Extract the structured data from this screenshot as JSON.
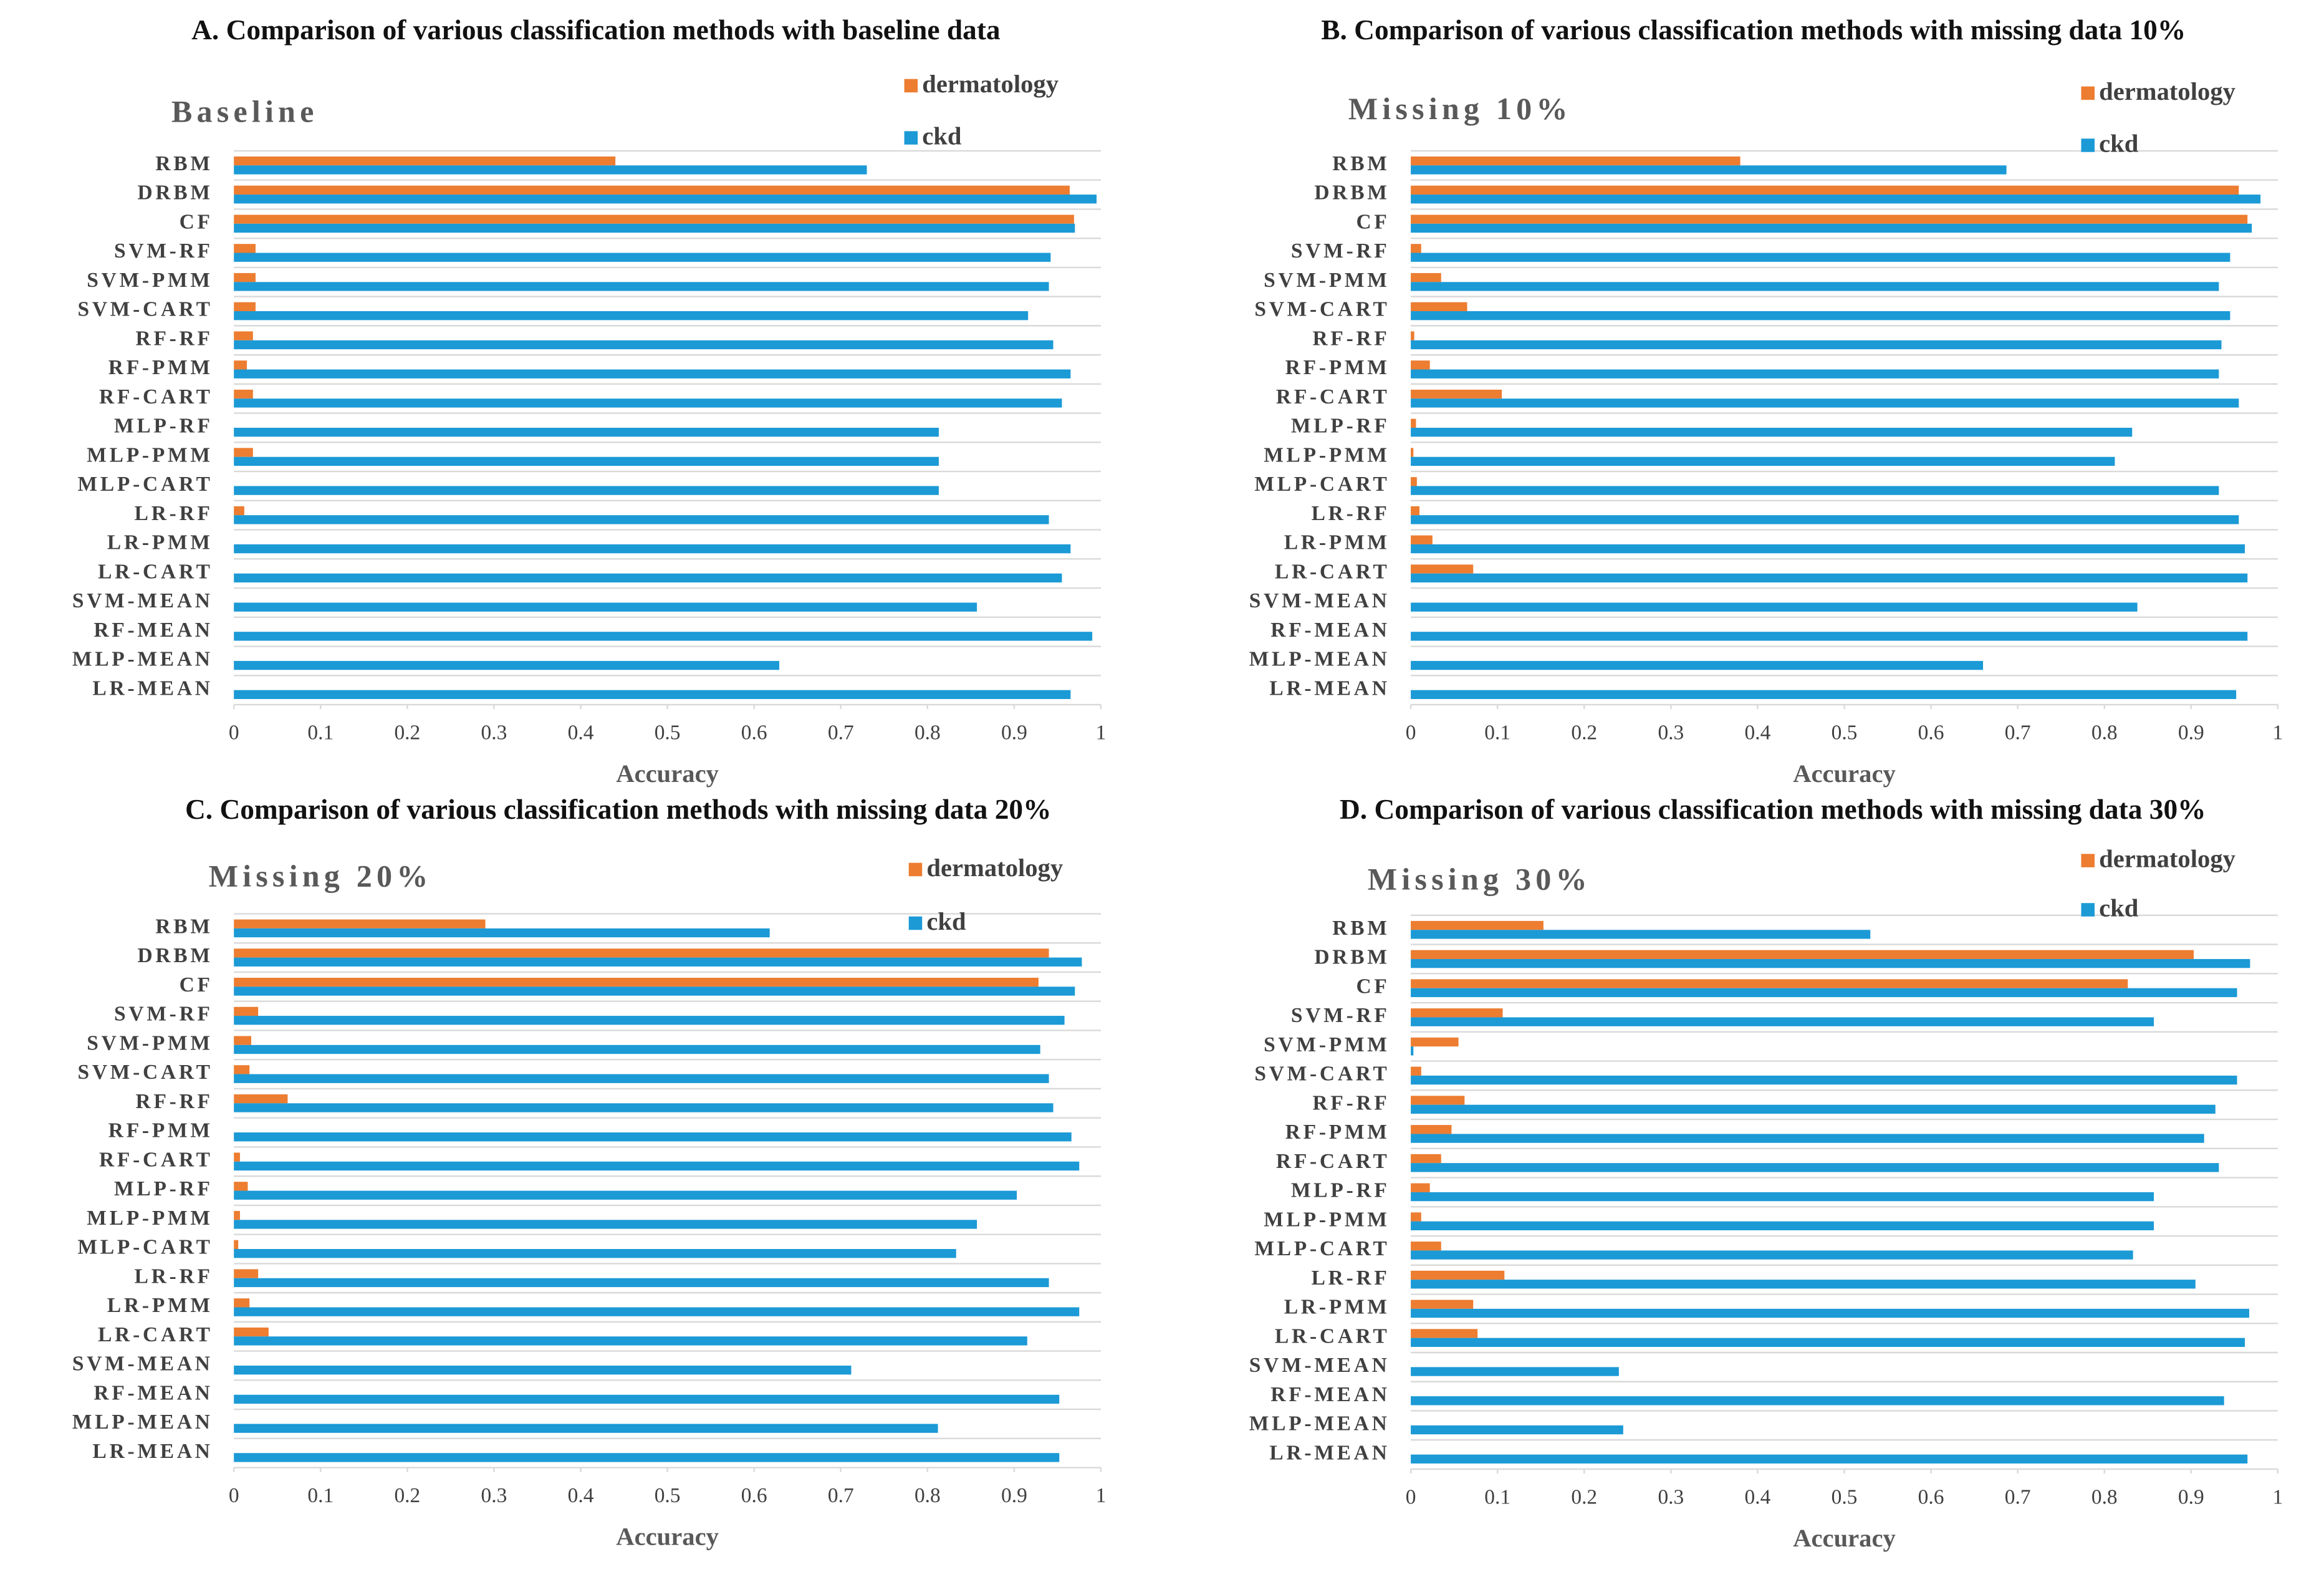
{
  "chart_data": [
    {
      "type": "bar",
      "orientation": "horizontal",
      "title": "A. Comparison of various classification methods with baseline data",
      "subtitle": "Baseline",
      "xlabel": "Accuracy",
      "categories": [
        "RBM",
        "DRBM",
        "CF",
        "SVM-RF",
        "SVM-PMM",
        "SVM-CART",
        "RF-RF",
        "RF-PMM",
        "RF-CART",
        "MLP-RF",
        "MLP-PMM",
        "MLP-CART",
        "LR-RF",
        "LR-PMM",
        "LR-CART",
        "SVM-MEAN",
        "RF-MEAN",
        "MLP-MEAN",
        "LR-MEAN"
      ],
      "series": [
        {
          "name": "dermatology",
          "color": "#ed7d31",
          "values": [
            0.44,
            0.964,
            0.969,
            0.025,
            0.025,
            0.025,
            0.022,
            0.015,
            0.022,
            null,
            0.022,
            null,
            0.012,
            null,
            null,
            null,
            null,
            null,
            null
          ]
        },
        {
          "name": "ckd",
          "color": "#1b9ad6",
          "values": [
            0.73,
            0.995,
            0.97,
            0.942,
            0.94,
            0.916,
            0.945,
            0.965,
            0.955,
            0.813,
            0.813,
            0.813,
            0.94,
            0.965,
            0.955,
            0.857,
            0.99,
            0.629,
            0.965
          ]
        }
      ],
      "xlim": [
        0,
        1
      ],
      "xticks": [
        0,
        0.1,
        0.2,
        0.3,
        0.4,
        0.5,
        0.6,
        0.7,
        0.8,
        0.9,
        1
      ],
      "grid": true
    },
    {
      "type": "bar",
      "orientation": "horizontal",
      "title": "B. Comparison of various classification methods with missing data 10%",
      "subtitle": "Missing 10%",
      "xlabel": "Accuracy",
      "categories": [
        "RBM",
        "DRBM",
        "CF",
        "SVM-RF",
        "SVM-PMM",
        "SVM-CART",
        "RF-RF",
        "RF-PMM",
        "RF-CART",
        "MLP-RF",
        "MLP-PMM",
        "MLP-CART",
        "LR-RF",
        "LR-PMM",
        "LR-CART",
        "SVM-MEAN",
        "RF-MEAN",
        "MLP-MEAN",
        "LR-MEAN"
      ],
      "series": [
        {
          "name": "dermatology",
          "color": "#ed7d31",
          "values": [
            0.38,
            0.955,
            0.965,
            0.012,
            0.035,
            0.065,
            0.004,
            0.022,
            0.105,
            0.006,
            0.003,
            0.007,
            0.01,
            0.025,
            0.072,
            null,
            null,
            null,
            null
          ]
        },
        {
          "name": "ckd",
          "color": "#1b9ad6",
          "values": [
            0.687,
            0.98,
            0.97,
            0.945,
            0.932,
            0.945,
            0.935,
            0.932,
            0.955,
            0.832,
            0.812,
            0.932,
            0.955,
            0.962,
            0.965,
            0.838,
            0.965,
            0.66,
            0.952
          ]
        }
      ],
      "xlim": [
        0,
        1
      ],
      "xticks": [
        0,
        0.1,
        0.2,
        0.3,
        0.4,
        0.5,
        0.6,
        0.7,
        0.8,
        0.9,
        1
      ],
      "grid": true
    },
    {
      "type": "bar",
      "orientation": "horizontal",
      "title": "C. Comparison of various classification methods with missing data 20%",
      "subtitle": "Missing 20%",
      "xlabel": "Accuracy",
      "categories": [
        "RBM",
        "DRBM",
        "CF",
        "SVM-RF",
        "SVM-PMM",
        "SVM-CART",
        "RF-RF",
        "RF-PMM",
        "RF-CART",
        "MLP-RF",
        "MLP-PMM",
        "MLP-CART",
        "LR-RF",
        "LR-PMM",
        "LR-CART",
        "SVM-MEAN",
        "RF-MEAN",
        "MLP-MEAN",
        "LR-MEAN"
      ],
      "series": [
        {
          "name": "dermatology",
          "color": "#ed7d31",
          "values": [
            0.29,
            0.94,
            0.928,
            0.028,
            0.02,
            0.018,
            0.062,
            null,
            0.007,
            0.016,
            0.007,
            0.005,
            0.028,
            0.018,
            0.04,
            null,
            null,
            null,
            null
          ]
        },
        {
          "name": "ckd",
          "color": "#1b9ad6",
          "values": [
            0.618,
            0.978,
            0.97,
            0.958,
            0.93,
            0.94,
            0.945,
            0.966,
            0.975,
            0.903,
            0.857,
            0.833,
            0.94,
            0.975,
            0.915,
            0.712,
            0.952,
            0.812,
            0.952
          ]
        }
      ],
      "xlim": [
        0,
        1
      ],
      "xticks": [
        0,
        0.1,
        0.2,
        0.3,
        0.4,
        0.5,
        0.6,
        0.7,
        0.8,
        0.9,
        1
      ],
      "grid": true
    },
    {
      "type": "bar",
      "orientation": "horizontal",
      "title": "D. Comparison of various classification methods with missing data 30%",
      "subtitle": "Missing 30%",
      "xlabel": "Accuracy",
      "categories": [
        "RBM",
        "DRBM",
        "CF",
        "SVM-RF",
        "SVM-PMM",
        "SVM-CART",
        "RF-RF",
        "RF-PMM",
        "RF-CART",
        "MLP-RF",
        "MLP-PMM",
        "MLP-CART",
        "LR-RF",
        "LR-PMM",
        "LR-CART",
        "SVM-MEAN",
        "RF-MEAN",
        "MLP-MEAN",
        "LR-MEAN"
      ],
      "series": [
        {
          "name": "dermatology",
          "color": "#ed7d31",
          "values": [
            0.153,
            0.903,
            0.827,
            0.106,
            0.055,
            0.012,
            0.062,
            0.047,
            0.035,
            0.022,
            0.012,
            0.035,
            0.108,
            0.072,
            0.077,
            null,
            null,
            null,
            null
          ]
        },
        {
          "name": "ckd",
          "color": "#1b9ad6",
          "values": [
            0.53,
            0.968,
            0.953,
            0.857,
            0.003,
            0.953,
            0.928,
            0.915,
            0.932,
            0.857,
            0.857,
            0.833,
            0.905,
            0.967,
            0.962,
            0.24,
            0.938,
            0.245,
            0.965
          ]
        }
      ],
      "xlim": [
        0,
        1
      ],
      "xticks": [
        0,
        0.1,
        0.2,
        0.3,
        0.4,
        0.5,
        0.6,
        0.7,
        0.8,
        0.9,
        1
      ],
      "grid": true
    }
  ]
}
